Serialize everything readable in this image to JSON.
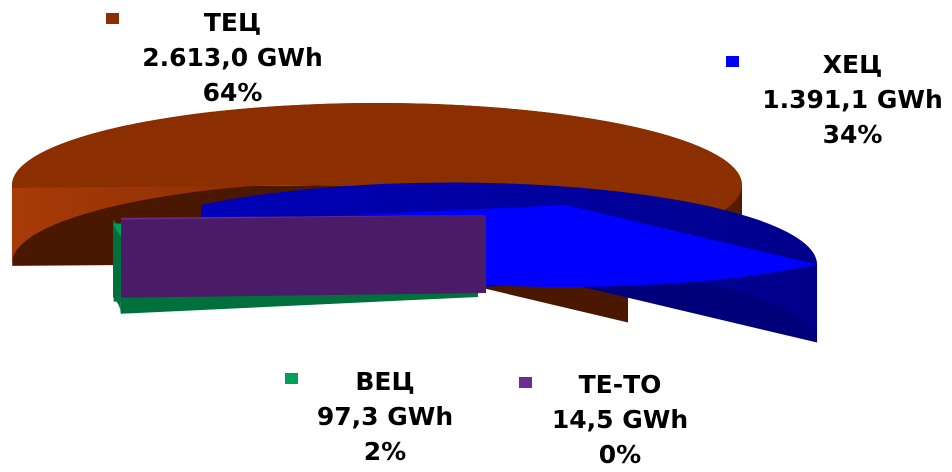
{
  "chart_data": {
    "type": "pie",
    "style": "3d-exploded",
    "title": "",
    "slices": [
      {
        "name": "ТЕЦ",
        "value_label": "2.613,0 GWh",
        "value": 2613.0,
        "unit": "GWh",
        "percent_label": "64%",
        "color": "#8b2e00"
      },
      {
        "name": "ХЕЦ",
        "value_label": "1.391,1 GWh",
        "value": 1391.1,
        "unit": "GWh",
        "percent_label": "34%",
        "color": "#0000ff"
      },
      {
        "name": "ВЕЦ",
        "value_label": "97,3 GWh",
        "value": 97.3,
        "unit": "GWh",
        "percent_label": "2%",
        "color": "#00a05a"
      },
      {
        "name": "ТЕ-ТО",
        "value_label": "14,5 GWh",
        "value": 14.5,
        "unit": "GWh",
        "percent_label": "0%",
        "color": "#6a2d8f"
      }
    ],
    "legend": "labels-beside-slices"
  }
}
